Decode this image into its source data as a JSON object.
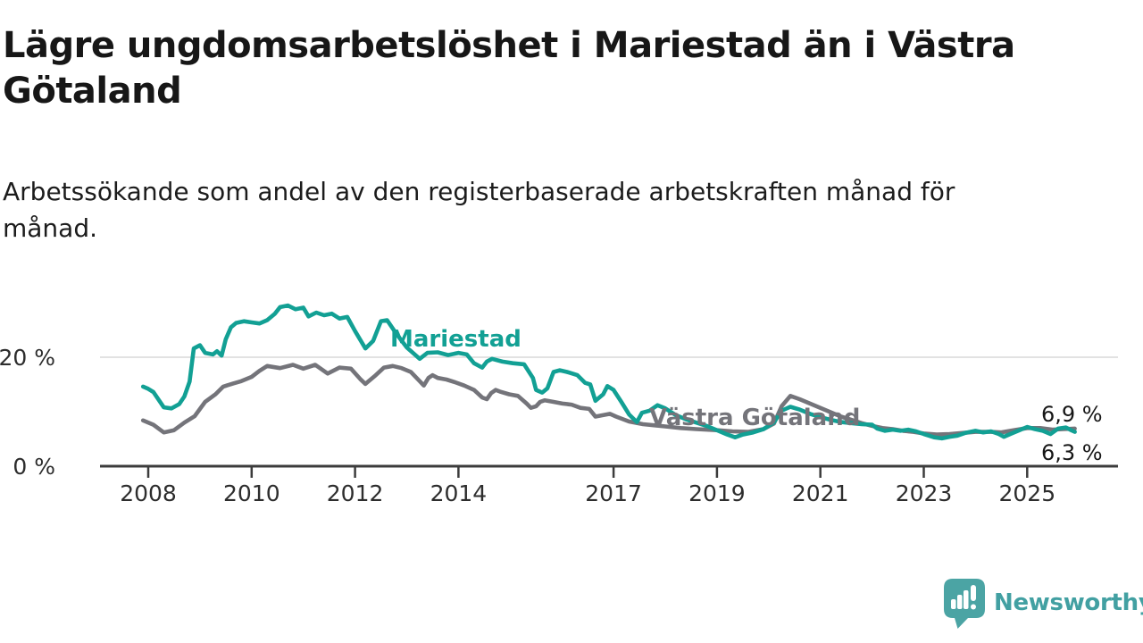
{
  "header": {
    "title": "Lägre ungdomsarbetslöshet i Mariestad än i Västra Götaland",
    "title_lines": [
      "Lägre ungdomsarbetslöshet i Mariestad än i Västra",
      "Götaland"
    ],
    "subtitle": "Arbetssökande som andel av den registerbaserade arbetskraften månad för månad.",
    "subtitle_lines": [
      "Arbetssökande som andel av den registerbaserade arbetskraften månad för",
      "månad."
    ]
  },
  "chart_data": {
    "type": "line",
    "title": "Lägre ungdomsarbetslöshet i Mariestad än i Västra Götaland",
    "xlabel": "",
    "ylabel": "",
    "unit": "%",
    "ylim": [
      0,
      32
    ],
    "xlim": [
      2007.6,
      2026.8
    ],
    "grid": "horizontal-20-only",
    "grid_values": [
      20
    ],
    "legend_position": "inline-labels",
    "y_ticks": [
      {
        "value": 0,
        "label": "0 %"
      },
      {
        "value": 20,
        "label": "20 %"
      }
    ],
    "x_ticks": [
      {
        "year": 2008,
        "label": "2008"
      },
      {
        "year": 2010,
        "label": "2010"
      },
      {
        "year": 2012,
        "label": "2012"
      },
      {
        "year": 2014,
        "label": "2014"
      },
      {
        "year": 2017,
        "label": "2017"
      },
      {
        "year": 2019,
        "label": "2019"
      },
      {
        "year": 2021,
        "label": "2021"
      },
      {
        "year": 2023,
        "label": "2023"
      },
      {
        "year": 2025,
        "label": "2025"
      }
    ],
    "series": [
      {
        "name": "Västra Götaland",
        "label_text": "Västra Götaland",
        "color": "#74747a",
        "end_label": "6,9 %",
        "end_value": 6.9,
        "points": [
          [
            2007.9,
            8.4
          ],
          [
            2008.1,
            7.6
          ],
          [
            2008.3,
            6.2
          ],
          [
            2008.5,
            6.6
          ],
          [
            2008.7,
            8.0
          ],
          [
            2008.9,
            9.2
          ],
          [
            2009.1,
            11.8
          ],
          [
            2009.3,
            13.2
          ],
          [
            2009.45,
            14.6
          ],
          [
            2009.65,
            15.2
          ],
          [
            2009.8,
            15.6
          ],
          [
            2010.0,
            16.4
          ],
          [
            2010.15,
            17.5
          ],
          [
            2010.3,
            18.4
          ],
          [
            2010.55,
            18.0
          ],
          [
            2010.8,
            18.6
          ],
          [
            2011.0,
            17.9
          ],
          [
            2011.23,
            18.6
          ],
          [
            2011.47,
            17.0
          ],
          [
            2011.7,
            18.1
          ],
          [
            2011.92,
            17.9
          ],
          [
            2012.1,
            16.0
          ],
          [
            2012.2,
            15.1
          ],
          [
            2012.4,
            16.7
          ],
          [
            2012.56,
            18.1
          ],
          [
            2012.73,
            18.4
          ],
          [
            2012.9,
            18.0
          ],
          [
            2013.08,
            17.3
          ],
          [
            2013.25,
            15.6
          ],
          [
            2013.33,
            14.8
          ],
          [
            2013.42,
            16.2
          ],
          [
            2013.5,
            16.7
          ],
          [
            2013.6,
            16.2
          ],
          [
            2013.77,
            15.9
          ],
          [
            2013.94,
            15.4
          ],
          [
            2014.11,
            14.8
          ],
          [
            2014.3,
            14.0
          ],
          [
            2014.46,
            12.6
          ],
          [
            2014.55,
            12.3
          ],
          [
            2014.63,
            13.4
          ],
          [
            2014.72,
            14.0
          ],
          [
            2014.8,
            13.7
          ],
          [
            2014.98,
            13.2
          ],
          [
            2015.15,
            12.9
          ],
          [
            2015.32,
            11.5
          ],
          [
            2015.4,
            10.7
          ],
          [
            2015.5,
            11.0
          ],
          [
            2015.58,
            11.8
          ],
          [
            2015.67,
            12.1
          ],
          [
            2015.84,
            11.8
          ],
          [
            2016.01,
            11.5
          ],
          [
            2016.19,
            11.3
          ],
          [
            2016.36,
            10.7
          ],
          [
            2016.53,
            10.5
          ],
          [
            2016.65,
            9.1
          ],
          [
            2016.76,
            9.3
          ],
          [
            2016.93,
            9.6
          ],
          [
            2017.05,
            9.1
          ],
          [
            2017.3,
            8.2
          ],
          [
            2017.57,
            7.7
          ],
          [
            2017.8,
            7.5
          ],
          [
            2018.0,
            7.3
          ],
          [
            2018.3,
            7.0
          ],
          [
            2018.6,
            6.8
          ],
          [
            2019.0,
            6.6
          ],
          [
            2019.3,
            6.4
          ],
          [
            2019.6,
            6.3
          ],
          [
            2019.9,
            6.8
          ],
          [
            2020.1,
            7.8
          ],
          [
            2020.25,
            11.0
          ],
          [
            2020.42,
            12.9
          ],
          [
            2020.6,
            12.3
          ],
          [
            2020.8,
            11.5
          ],
          [
            2021.0,
            10.7
          ],
          [
            2021.2,
            9.9
          ],
          [
            2021.4,
            9.1
          ],
          [
            2021.6,
            8.5
          ],
          [
            2021.8,
            7.9
          ],
          [
            2022.0,
            7.4
          ],
          [
            2022.2,
            7.0
          ],
          [
            2022.4,
            6.8
          ],
          [
            2022.6,
            6.5
          ],
          [
            2022.8,
            6.3
          ],
          [
            2023.0,
            6.0
          ],
          [
            2023.25,
            5.8
          ],
          [
            2023.5,
            5.9
          ],
          [
            2023.75,
            6.1
          ],
          [
            2024.0,
            6.3
          ],
          [
            2024.3,
            6.3
          ],
          [
            2024.5,
            6.2
          ],
          [
            2024.75,
            6.6
          ],
          [
            2025.0,
            7.0
          ],
          [
            2025.25,
            7.0
          ],
          [
            2025.5,
            6.7
          ],
          [
            2025.7,
            6.8
          ],
          [
            2025.92,
            6.9
          ]
        ]
      },
      {
        "name": "Mariestad",
        "label_text": "Mariestad",
        "color": "#12a094",
        "end_label": "6,3 %",
        "end_value": 6.3,
        "points": [
          [
            2007.9,
            14.6
          ],
          [
            2008.0,
            14.2
          ],
          [
            2008.1,
            13.6
          ],
          [
            2008.3,
            10.8
          ],
          [
            2008.45,
            10.6
          ],
          [
            2008.6,
            11.4
          ],
          [
            2008.7,
            12.8
          ],
          [
            2008.8,
            15.5
          ],
          [
            2008.88,
            21.6
          ],
          [
            2009.0,
            22.2
          ],
          [
            2009.1,
            20.8
          ],
          [
            2009.25,
            20.5
          ],
          [
            2009.33,
            21.1
          ],
          [
            2009.42,
            20.3
          ],
          [
            2009.5,
            23.3
          ],
          [
            2009.6,
            25.5
          ],
          [
            2009.7,
            26.3
          ],
          [
            2009.85,
            26.6
          ],
          [
            2010.0,
            26.4
          ],
          [
            2010.15,
            26.2
          ],
          [
            2010.3,
            26.8
          ],
          [
            2010.45,
            28.0
          ],
          [
            2010.55,
            29.2
          ],
          [
            2010.7,
            29.5
          ],
          [
            2010.85,
            28.8
          ],
          [
            2011.0,
            29.1
          ],
          [
            2011.1,
            27.5
          ],
          [
            2011.25,
            28.2
          ],
          [
            2011.4,
            27.7
          ],
          [
            2011.55,
            28.0
          ],
          [
            2011.7,
            27.1
          ],
          [
            2011.85,
            27.4
          ],
          [
            2012.0,
            24.8
          ],
          [
            2012.2,
            21.6
          ],
          [
            2012.35,
            23.0
          ],
          [
            2012.5,
            26.6
          ],
          [
            2012.62,
            26.8
          ],
          [
            2012.8,
            24.3
          ],
          [
            2013.0,
            21.8
          ],
          [
            2013.25,
            19.7
          ],
          [
            2013.4,
            20.8
          ],
          [
            2013.6,
            20.9
          ],
          [
            2013.8,
            20.4
          ],
          [
            2014.0,
            20.8
          ],
          [
            2014.16,
            20.5
          ],
          [
            2014.3,
            18.9
          ],
          [
            2014.46,
            18.1
          ],
          [
            2014.55,
            19.2
          ],
          [
            2014.65,
            19.7
          ],
          [
            2014.85,
            19.2
          ],
          [
            2015.05,
            18.9
          ],
          [
            2015.27,
            18.7
          ],
          [
            2015.44,
            16.2
          ],
          [
            2015.5,
            14.0
          ],
          [
            2015.62,
            13.5
          ],
          [
            2015.72,
            14.3
          ],
          [
            2015.84,
            17.3
          ],
          [
            2015.96,
            17.6
          ],
          [
            2016.1,
            17.3
          ],
          [
            2016.3,
            16.7
          ],
          [
            2016.45,
            15.3
          ],
          [
            2016.55,
            15.0
          ],
          [
            2016.65,
            12.0
          ],
          [
            2016.8,
            13.2
          ],
          [
            2016.88,
            14.7
          ],
          [
            2017.0,
            14.0
          ],
          [
            2017.15,
            11.8
          ],
          [
            2017.3,
            9.5
          ],
          [
            2017.45,
            8.1
          ],
          [
            2017.55,
            9.8
          ],
          [
            2017.7,
            10.2
          ],
          [
            2017.85,
            11.2
          ],
          [
            2018.0,
            10.6
          ],
          [
            2018.2,
            9.4
          ],
          [
            2018.4,
            8.6
          ],
          [
            2018.6,
            8.0
          ],
          [
            2018.8,
            7.4
          ],
          [
            2019.0,
            6.6
          ],
          [
            2019.2,
            5.8
          ],
          [
            2019.35,
            5.3
          ],
          [
            2019.5,
            5.8
          ],
          [
            2019.7,
            6.2
          ],
          [
            2019.9,
            6.8
          ],
          [
            2020.1,
            8.0
          ],
          [
            2020.25,
            10.2
          ],
          [
            2020.42,
            10.9
          ],
          [
            2020.6,
            10.4
          ],
          [
            2020.8,
            9.6
          ],
          [
            2021.0,
            9.0
          ],
          [
            2021.2,
            8.5
          ],
          [
            2021.4,
            8.1
          ],
          [
            2021.6,
            7.9
          ],
          [
            2021.8,
            7.7
          ],
          [
            2022.0,
            7.6
          ],
          [
            2022.1,
            6.9
          ],
          [
            2022.25,
            6.5
          ],
          [
            2022.4,
            6.7
          ],
          [
            2022.55,
            6.5
          ],
          [
            2022.7,
            6.7
          ],
          [
            2022.85,
            6.4
          ],
          [
            2023.0,
            5.9
          ],
          [
            2023.2,
            5.3
          ],
          [
            2023.35,
            5.1
          ],
          [
            2023.5,
            5.4
          ],
          [
            2023.65,
            5.6
          ],
          [
            2023.8,
            6.1
          ],
          [
            2024.0,
            6.5
          ],
          [
            2024.15,
            6.2
          ],
          [
            2024.3,
            6.4
          ],
          [
            2024.45,
            5.9
          ],
          [
            2024.55,
            5.4
          ],
          [
            2024.7,
            6.0
          ],
          [
            2024.85,
            6.6
          ],
          [
            2025.0,
            7.2
          ],
          [
            2025.15,
            6.8
          ],
          [
            2025.3,
            6.5
          ],
          [
            2025.45,
            5.9
          ],
          [
            2025.6,
            6.9
          ],
          [
            2025.75,
            7.1
          ],
          [
            2025.85,
            6.6
          ],
          [
            2025.92,
            6.3
          ]
        ]
      }
    ],
    "colors": {
      "mariestad": "#12a094",
      "vastra_gotaland": "#74747a",
      "axis": "#3c3c3c",
      "gridline": "#d9d9d9",
      "tick_text": "#2d2d2d"
    }
  },
  "footer": {
    "brand": "Newsworthy",
    "logo_color": "#4ba4a4"
  }
}
